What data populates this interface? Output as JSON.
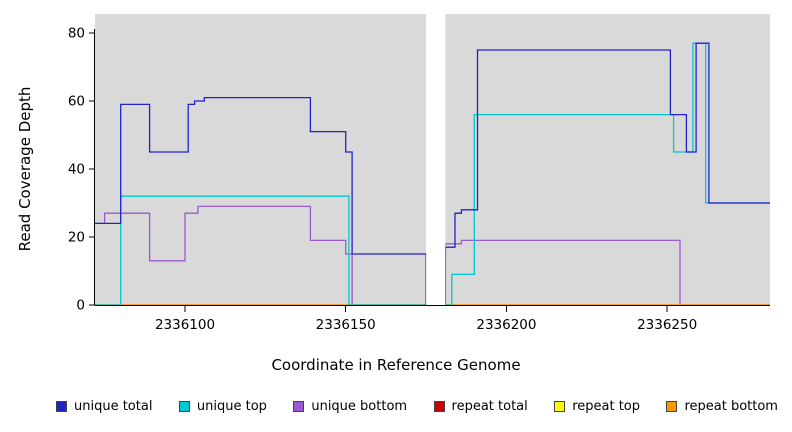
{
  "chart_data": {
    "type": "line",
    "title": "",
    "xlabel": "Coordinate in Reference Genome",
    "ylabel": "Read Coverage Depth",
    "x_range": [
      2336072,
      2336282
    ],
    "y_range": [
      0,
      80
    ],
    "x_ticks": [
      2336100,
      2336150,
      2336200,
      2336250
    ],
    "y_ticks": [
      0,
      20,
      40,
      60,
      80
    ],
    "plot_bg": "#d9d9d9",
    "gap_region": [
      2336175,
      2336181
    ],
    "step": true,
    "series": [
      {
        "name": "repeat total",
        "color": "#cc0000",
        "points": [
          [
            2336072,
            0
          ]
        ]
      },
      {
        "name": "repeat top",
        "color": "#ffff00",
        "points": [
          [
            2336072,
            0
          ]
        ]
      },
      {
        "name": "unique bottom",
        "color": "#9b59d0",
        "points": [
          [
            2336072,
            24
          ],
          [
            2336075,
            27
          ],
          [
            2336089,
            13
          ],
          [
            2336100,
            27
          ],
          [
            2336104,
            29
          ],
          [
            2336139,
            19
          ],
          [
            2336150,
            15
          ],
          [
            2336152,
            0
          ],
          [
            2336181,
            18
          ],
          [
            2336186,
            19
          ],
          [
            2336254,
            0
          ]
        ]
      },
      {
        "name": "repeat bottom",
        "color": "#ff9900",
        "points": [
          [
            2336072,
            0
          ]
        ]
      },
      {
        "name": "unique top",
        "color": "#00c8d0",
        "points": [
          [
            2336072,
            0
          ],
          [
            2336080,
            32
          ],
          [
            2336151,
            0
          ],
          [
            2336183,
            9
          ],
          [
            2336190,
            56
          ],
          [
            2336252,
            45
          ],
          [
            2336258,
            77
          ],
          [
            2336262,
            30
          ]
        ]
      },
      {
        "name": "unique total",
        "color": "#2222cc",
        "points": [
          [
            2336072,
            24
          ],
          [
            2336080,
            59
          ],
          [
            2336089,
            45
          ],
          [
            2336101,
            59
          ],
          [
            2336103,
            60
          ],
          [
            2336106,
            61
          ],
          [
            2336139,
            51
          ],
          [
            2336150,
            45
          ],
          [
            2336152,
            15
          ],
          [
            2336175,
            0
          ],
          [
            2336181,
            17
          ],
          [
            2336184,
            27
          ],
          [
            2336186,
            28
          ],
          [
            2336191,
            75
          ],
          [
            2336251,
            56
          ],
          [
            2336256,
            45
          ],
          [
            2336259,
            77
          ],
          [
            2336263,
            30
          ]
        ]
      }
    ],
    "legend": [
      {
        "label": "unique total",
        "color": "#2222cc"
      },
      {
        "label": "unique top",
        "color": "#00c8d0"
      },
      {
        "label": "unique bottom",
        "color": "#9b59d0"
      },
      {
        "label": "repeat total",
        "color": "#cc0000"
      },
      {
        "label": "repeat top",
        "color": "#ffff00"
      },
      {
        "label": "repeat bottom",
        "color": "#ff9900"
      }
    ]
  }
}
